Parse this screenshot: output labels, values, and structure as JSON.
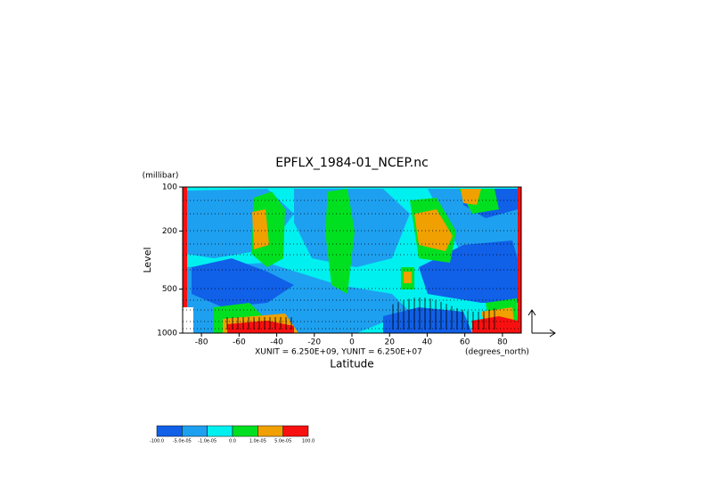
{
  "chart_data": {
    "type": "contour",
    "title": "EPFLX_1984-01_NCEP.nc",
    "y_unit": "(millibar)",
    "y_label": "Level",
    "x_label": "Latitude",
    "x_unit": "(degrees_north)",
    "annotation": "XUNIT = 6.250E+09, YUNIT = 6.250E+07",
    "xlim": [
      -90,
      90
    ],
    "xticks": [
      -80,
      -60,
      -40,
      -20,
      0,
      20,
      40,
      60,
      80
    ],
    "ylim": [
      1000,
      100
    ],
    "yticks": [
      100,
      200,
      500,
      1000
    ],
    "y_scale": "log",
    "colorbar": {
      "levels": [
        {
          "value": -100,
          "label": "-100.0"
        },
        {
          "value": -5e-05,
          "label": "-5.0e-05"
        },
        {
          "value": -1e-05,
          "label": "-1.0e-05"
        },
        {
          "value": 0,
          "label": "0.0"
        },
        {
          "value": 1e-05,
          "label": "1.0e-05"
        },
        {
          "value": 5e-05,
          "label": "5.0e-05"
        },
        {
          "value": 100,
          "label": "100.0"
        }
      ],
      "colors": [
        "#1060e8",
        "#1ea0f0",
        "#00f0f0",
        "#00e020",
        "#f0a000",
        "#f81010"
      ]
    }
  }
}
